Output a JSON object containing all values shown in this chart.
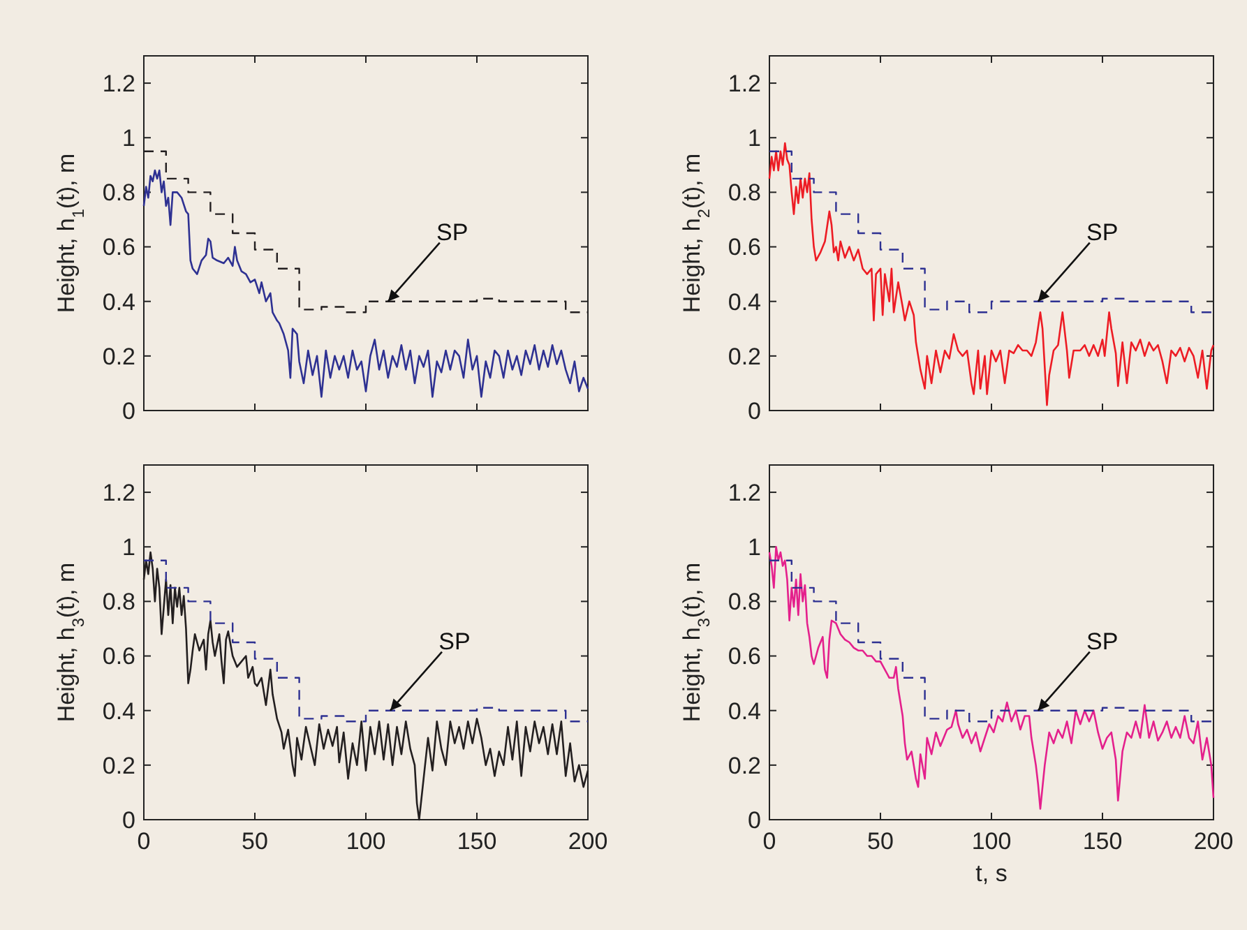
{
  "chart_data": [
    {
      "type": "line",
      "ylabel": "Height, h$_{1}$(t), m",
      "xlim": [
        0,
        200
      ],
      "ylim": [
        0,
        1.3
      ],
      "xticks": [
        0,
        50,
        100,
        150,
        200
      ],
      "yticks": [
        0,
        0.2,
        0.4,
        0.6,
        0.8,
        1,
        1.2
      ],
      "tick_labels": "y",
      "annotations": [
        {
          "text": "SP",
          "x": 110,
          "y": 0.4
        }
      ],
      "series": [
        {
          "color": "#2e3192",
          "x": [
            0,
            1,
            2,
            3,
            4,
            5,
            6,
            7,
            8,
            9,
            10,
            11,
            12,
            13,
            15,
            17,
            19,
            20,
            21,
            22,
            24,
            26,
            28,
            29,
            30,
            31,
            33,
            36,
            38,
            40,
            41,
            42,
            44,
            46,
            48,
            50,
            52,
            53,
            55,
            57,
            58,
            60,
            61,
            63,
            65,
            66,
            67,
            69,
            70,
            72,
            74,
            76,
            78,
            80,
            82,
            84,
            86,
            88,
            90,
            92,
            94,
            96,
            98,
            100,
            102,
            104,
            106,
            108,
            110,
            112,
            114,
            116,
            118,
            120,
            122,
            124,
            126,
            128,
            130,
            132,
            134,
            136,
            138,
            140,
            142,
            144,
            146,
            148,
            150,
            152,
            154,
            156,
            158,
            160,
            162,
            164,
            166,
            168,
            170,
            172,
            174,
            176,
            178,
            180,
            182,
            184,
            186,
            188,
            190,
            192,
            194,
            196,
            198,
            200
          ],
          "values": [
            0.75,
            0.82,
            0.78,
            0.86,
            0.84,
            0.88,
            0.85,
            0.88,
            0.8,
            0.84,
            0.75,
            0.78,
            0.68,
            0.8,
            0.8,
            0.78,
            0.73,
            0.72,
            0.55,
            0.52,
            0.5,
            0.55,
            0.57,
            0.63,
            0.62,
            0.56,
            0.55,
            0.54,
            0.56,
            0.53,
            0.6,
            0.55,
            0.51,
            0.5,
            0.47,
            0.48,
            0.43,
            0.47,
            0.4,
            0.43,
            0.36,
            0.33,
            0.32,
            0.28,
            0.22,
            0.12,
            0.3,
            0.28,
            0.18,
            0.1,
            0.22,
            0.13,
            0.2,
            0.05,
            0.22,
            0.12,
            0.2,
            0.15,
            0.2,
            0.12,
            0.22,
            0.15,
            0.18,
            0.07,
            0.2,
            0.26,
            0.15,
            0.22,
            0.12,
            0.2,
            0.16,
            0.24,
            0.15,
            0.22,
            0.1,
            0.2,
            0.16,
            0.22,
            0.05,
            0.18,
            0.14,
            0.22,
            0.15,
            0.22,
            0.2,
            0.12,
            0.26,
            0.15,
            0.2,
            0.05,
            0.18,
            0.12,
            0.22,
            0.2,
            0.12,
            0.22,
            0.15,
            0.2,
            0.13,
            0.22,
            0.17,
            0.24,
            0.15,
            0.22,
            0.16,
            0.24,
            0.17,
            0.22,
            0.15,
            0.1,
            0.18,
            0.07,
            0.12,
            0.08
          ]
        },
        {
          "type": "step",
          "color": "#231f20",
          "line_style": "dashed",
          "x": [
            0,
            10,
            20,
            30,
            40,
            50,
            60,
            70,
            80,
            90,
            100,
            150,
            160,
            190,
            200
          ],
          "values": [
            0.95,
            0.85,
            0.8,
            0.72,
            0.65,
            0.59,
            0.52,
            0.37,
            0.38,
            0.36,
            0.4,
            0.41,
            0.4,
            0.36,
            0.36
          ]
        }
      ]
    },
    {
      "type": "line",
      "ylabel": "Height, h$_{2}$(t), m",
      "xlim": [
        0,
        200
      ],
      "ylim": [
        0,
        1.3
      ],
      "xticks": [
        0,
        50,
        100,
        150,
        200
      ],
      "yticks": [
        0,
        0.2,
        0.4,
        0.6,
        0.8,
        1,
        1.2
      ],
      "tick_labels": "y",
      "annotations": [
        {
          "text": "SP",
          "x": 121,
          "y": 0.4
        }
      ],
      "series": [
        {
          "color": "#ed1c24",
          "x": [
            0,
            1,
            2,
            3,
            4,
            5,
            6,
            7,
            8,
            9,
            10,
            11,
            12,
            13,
            14,
            15,
            16,
            17,
            18,
            19,
            20,
            21,
            23,
            25,
            27,
            28,
            29,
            30,
            31,
            32,
            34,
            36,
            38,
            40,
            42,
            44,
            46,
            47,
            48,
            50,
            51,
            52,
            54,
            55,
            56,
            58,
            60,
            61,
            63,
            65,
            66,
            67,
            68,
            70,
            71,
            73,
            75,
            77,
            79,
            81,
            83,
            85,
            87,
            89,
            91,
            92,
            94,
            95,
            97,
            98,
            100,
            102,
            104,
            106,
            108,
            110,
            112,
            114,
            116,
            118,
            120,
            122,
            123,
            125,
            126,
            128,
            130,
            132,
            134,
            135,
            137,
            140,
            142,
            144,
            146,
            148,
            150,
            151,
            153,
            154,
            156,
            157,
            159,
            161,
            163,
            165,
            167,
            169,
            171,
            173,
            175,
            177,
            179,
            181,
            183,
            185,
            187,
            189,
            191,
            193,
            195,
            197,
            199,
            200
          ],
          "values": [
            0.85,
            0.93,
            0.88,
            0.95,
            0.88,
            0.95,
            0.9,
            0.98,
            0.92,
            0.9,
            0.8,
            0.72,
            0.82,
            0.76,
            0.85,
            0.78,
            0.85,
            0.8,
            0.87,
            0.7,
            0.6,
            0.55,
            0.58,
            0.62,
            0.73,
            0.68,
            0.58,
            0.6,
            0.55,
            0.62,
            0.56,
            0.6,
            0.55,
            0.59,
            0.52,
            0.5,
            0.52,
            0.33,
            0.5,
            0.52,
            0.35,
            0.5,
            0.4,
            0.52,
            0.36,
            0.47,
            0.38,
            0.33,
            0.4,
            0.35,
            0.25,
            0.2,
            0.15,
            0.08,
            0.2,
            0.1,
            0.22,
            0.14,
            0.22,
            0.19,
            0.28,
            0.22,
            0.2,
            0.22,
            0.1,
            0.06,
            0.22,
            0.08,
            0.2,
            0.06,
            0.22,
            0.18,
            0.22,
            0.1,
            0.22,
            0.21,
            0.24,
            0.22,
            0.22,
            0.2,
            0.25,
            0.36,
            0.3,
            0.02,
            0.13,
            0.22,
            0.24,
            0.36,
            0.22,
            0.12,
            0.22,
            0.22,
            0.24,
            0.2,
            0.24,
            0.2,
            0.26,
            0.2,
            0.36,
            0.3,
            0.21,
            0.09,
            0.25,
            0.1,
            0.25,
            0.22,
            0.26,
            0.2,
            0.25,
            0.22,
            0.24,
            0.18,
            0.1,
            0.22,
            0.2,
            0.23,
            0.18,
            0.23,
            0.2,
            0.12,
            0.22,
            0.08,
            0.22,
            0.24
          ]
        },
        {
          "type": "step",
          "color": "#2e3192",
          "line_style": "dashed",
          "x": [
            0,
            10,
            20,
            30,
            40,
            50,
            60,
            70,
            80,
            90,
            100,
            150,
            160,
            190,
            200
          ],
          "values": [
            0.95,
            0.85,
            0.8,
            0.72,
            0.65,
            0.59,
            0.52,
            0.37,
            0.4,
            0.36,
            0.4,
            0.41,
            0.4,
            0.36,
            0.36
          ]
        }
      ]
    },
    {
      "type": "line",
      "ylabel": "Height, h$_{3}$(t), m",
      "xlim": [
        0,
        200
      ],
      "ylim": [
        0,
        1.3
      ],
      "xticks": [
        0,
        50,
        100,
        150,
        200
      ],
      "yticks": [
        0,
        0.2,
        0.4,
        0.6,
        0.8,
        1,
        1.2
      ],
      "annotations": [
        {
          "text": "SP",
          "x": 111,
          "y": 0.4
        }
      ],
      "series": [
        {
          "color": "#231f20",
          "x": [
            0,
            1,
            2,
            3,
            4,
            5,
            6,
            7,
            8,
            9,
            10,
            11,
            12,
            13,
            14,
            15,
            16,
            17,
            18,
            19,
            20,
            21,
            22,
            23,
            25,
            27,
            28,
            29,
            30,
            31,
            32,
            34,
            35,
            36,
            37,
            38,
            40,
            42,
            44,
            46,
            47,
            49,
            50,
            51,
            53,
            55,
            57,
            58,
            60,
            62,
            63,
            65,
            67,
            68,
            69,
            71,
            73,
            75,
            77,
            79,
            81,
            83,
            85,
            87,
            88,
            90,
            92,
            94,
            96,
            98,
            100,
            102,
            104,
            106,
            108,
            110,
            112,
            114,
            116,
            118,
            120,
            122,
            123,
            124,
            126,
            128,
            130,
            132,
            134,
            136,
            138,
            140,
            142,
            144,
            146,
            148,
            150,
            152,
            154,
            156,
            158,
            160,
            162,
            164,
            166,
            168,
            170,
            172,
            174,
            176,
            178,
            180,
            182,
            184,
            186,
            188,
            190,
            192,
            194,
            196,
            198,
            200
          ],
          "values": [
            0.88,
            0.95,
            0.9,
            0.98,
            0.92,
            0.8,
            0.92,
            0.85,
            0.68,
            0.78,
            0.88,
            0.75,
            0.86,
            0.72,
            0.85,
            0.78,
            0.85,
            0.75,
            0.82,
            0.7,
            0.5,
            0.55,
            0.62,
            0.68,
            0.62,
            0.66,
            0.55,
            0.68,
            0.73,
            0.65,
            0.6,
            0.68,
            0.58,
            0.5,
            0.66,
            0.69,
            0.6,
            0.56,
            0.58,
            0.6,
            0.52,
            0.56,
            0.5,
            0.49,
            0.52,
            0.42,
            0.55,
            0.46,
            0.37,
            0.32,
            0.26,
            0.33,
            0.2,
            0.16,
            0.3,
            0.22,
            0.34,
            0.27,
            0.2,
            0.35,
            0.26,
            0.33,
            0.27,
            0.34,
            0.21,
            0.32,
            0.15,
            0.28,
            0.2,
            0.36,
            0.18,
            0.34,
            0.24,
            0.36,
            0.22,
            0.35,
            0.2,
            0.34,
            0.24,
            0.36,
            0.26,
            0.2,
            0.06,
            0,
            0.15,
            0.3,
            0.18,
            0.36,
            0.26,
            0.2,
            0.36,
            0.28,
            0.34,
            0.26,
            0.36,
            0.28,
            0.37,
            0.3,
            0.2,
            0.26,
            0.16,
            0.25,
            0.2,
            0.34,
            0.22,
            0.36,
            0.16,
            0.34,
            0.25,
            0.36,
            0.28,
            0.34,
            0.24,
            0.35,
            0.24,
            0.36,
            0.16,
            0.28,
            0.14,
            0.2,
            0.12,
            0.18
          ]
        },
        {
          "type": "step",
          "color": "#2e3192",
          "line_style": "dashed",
          "x": [
            0,
            10,
            20,
            30,
            40,
            50,
            60,
            70,
            80,
            90,
            100,
            150,
            160,
            190,
            200
          ],
          "values": [
            0.95,
            0.85,
            0.8,
            0.72,
            0.65,
            0.59,
            0.52,
            0.37,
            0.38,
            0.36,
            0.4,
            0.41,
            0.4,
            0.36,
            0.36
          ]
        }
      ]
    },
    {
      "type": "line",
      "ylabel": "Height, h$_{3}$(t), m",
      "xlabel": "t, s",
      "xlim": [
        0,
        200
      ],
      "ylim": [
        0,
        1.3
      ],
      "xticks": [
        0,
        50,
        100,
        150,
        200
      ],
      "yticks": [
        0,
        0.2,
        0.4,
        0.6,
        0.8,
        1,
        1.2
      ],
      "annotations": [
        {
          "text": "SP",
          "x": 121,
          "y": 0.4
        }
      ],
      "series": [
        {
          "color": "#e4208c",
          "x": [
            0,
            1,
            2,
            3,
            4,
            5,
            6,
            7,
            8,
            9,
            10,
            11,
            12,
            13,
            14,
            15,
            16,
            17,
            18,
            19,
            20,
            22,
            24,
            25,
            26,
            27,
            28,
            30,
            32,
            34,
            36,
            38,
            40,
            42,
            44,
            46,
            48,
            50,
            52,
            54,
            56,
            57,
            58,
            60,
            61,
            62,
            64,
            66,
            67,
            68,
            70,
            71,
            73,
            75,
            77,
            80,
            82,
            84,
            85,
            87,
            89,
            91,
            93,
            95,
            97,
            99,
            101,
            103,
            105,
            107,
            109,
            111,
            113,
            115,
            117,
            118,
            120,
            121,
            122,
            124,
            126,
            128,
            130,
            132,
            134,
            136,
            138,
            140,
            142,
            144,
            146,
            148,
            150,
            152,
            154,
            156,
            157,
            159,
            161,
            163,
            165,
            167,
            169,
            171,
            173,
            175,
            177,
            179,
            181,
            183,
            185,
            187,
            189,
            191,
            193,
            195,
            197,
            199,
            200
          ],
          "values": [
            0.98,
            0.93,
            0.85,
            1,
            0.95,
            0.98,
            0.93,
            0.95,
            0.88,
            0.73,
            0.85,
            0.78,
            0.88,
            0.75,
            0.9,
            0.8,
            0.86,
            0.72,
            0.67,
            0.6,
            0.57,
            0.63,
            0.67,
            0.55,
            0.52,
            0.66,
            0.73,
            0.72,
            0.68,
            0.66,
            0.65,
            0.63,
            0.62,
            0.62,
            0.6,
            0.6,
            0.58,
            0.58,
            0.55,
            0.52,
            0.52,
            0.56,
            0.48,
            0.38,
            0.28,
            0.22,
            0.25,
            0.15,
            0.12,
            0.24,
            0.15,
            0.3,
            0.24,
            0.32,
            0.27,
            0.33,
            0.34,
            0.4,
            0.35,
            0.3,
            0.33,
            0.28,
            0.32,
            0.25,
            0.3,
            0.35,
            0.32,
            0.38,
            0.36,
            0.43,
            0.36,
            0.4,
            0.33,
            0.38,
            0.38,
            0.3,
            0.2,
            0.13,
            0.04,
            0.2,
            0.32,
            0.28,
            0.33,
            0.3,
            0.36,
            0.28,
            0.4,
            0.35,
            0.4,
            0.36,
            0.4,
            0.32,
            0.26,
            0.3,
            0.32,
            0.22,
            0.07,
            0.25,
            0.32,
            0.3,
            0.36,
            0.3,
            0.42,
            0.3,
            0.36,
            0.29,
            0.32,
            0.36,
            0.3,
            0.34,
            0.3,
            0.38,
            0.3,
            0.28,
            0.36,
            0.22,
            0.3,
            0.2,
            0.08
          ]
        },
        {
          "type": "step",
          "color": "#2e3192",
          "line_style": "dashed",
          "x": [
            0,
            10,
            20,
            30,
            40,
            50,
            60,
            70,
            80,
            90,
            100,
            150,
            160,
            190,
            200
          ],
          "values": [
            0.95,
            0.85,
            0.8,
            0.72,
            0.65,
            0.59,
            0.52,
            0.37,
            0.4,
            0.36,
            0.4,
            0.41,
            0.4,
            0.36,
            0.36
          ]
        }
      ]
    }
  ]
}
